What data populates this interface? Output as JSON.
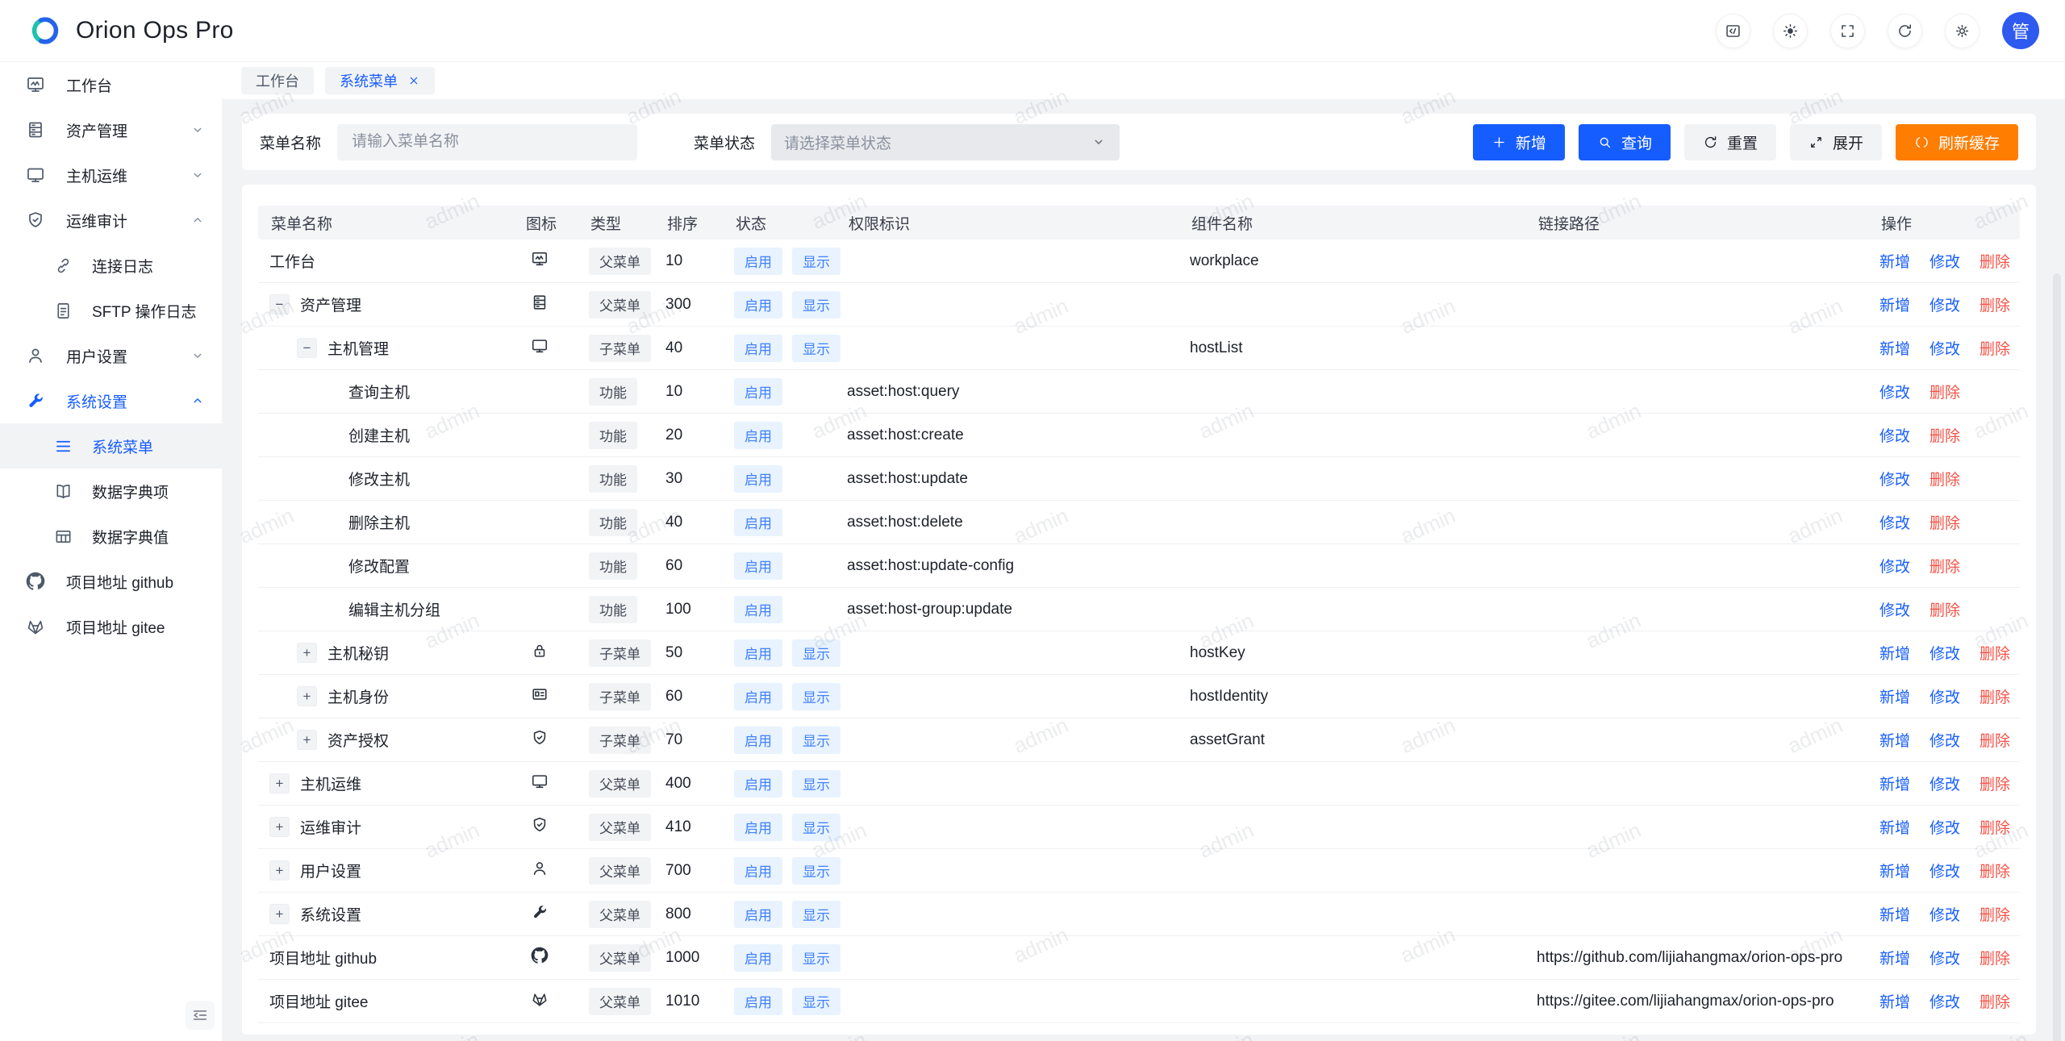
{
  "app": {
    "name": "Orion Ops Pro"
  },
  "header": {
    "avatar": "管",
    "actions": [
      {
        "icon": "code",
        "name": "api-docs"
      },
      {
        "icon": "sun",
        "name": "theme-toggle"
      },
      {
        "icon": "fullscreen",
        "name": "fullscreen"
      },
      {
        "icon": "refresh",
        "name": "reload"
      },
      {
        "icon": "gear",
        "name": "settings"
      }
    ]
  },
  "sidebar": {
    "items": [
      {
        "label": "工作台",
        "icon": "dashboard"
      },
      {
        "label": "资产管理",
        "icon": "server",
        "chevron": "down"
      },
      {
        "label": "主机运维",
        "icon": "monitor",
        "chevron": "down"
      },
      {
        "label": "运维审计",
        "icon": "shield",
        "chevron": "up",
        "children": [
          {
            "label": "连接日志",
            "icon": "link"
          },
          {
            "label": "SFTP 操作日志",
            "icon": "file"
          }
        ]
      },
      {
        "label": "用户设置",
        "icon": "user",
        "chevron": "down"
      },
      {
        "label": "系统设置",
        "icon": "wrench",
        "chevron": "up",
        "active": true,
        "children": [
          {
            "label": "系统菜单",
            "icon": "menu",
            "selected": true
          },
          {
            "label": "数据字典项",
            "icon": "book"
          },
          {
            "label": "数据字典值",
            "icon": "table"
          }
        ]
      },
      {
        "label": "项目地址 github",
        "icon": "github"
      },
      {
        "label": "项目地址 gitee",
        "icon": "gitee"
      }
    ]
  },
  "tabs": [
    {
      "label": "工作台"
    },
    {
      "label": "系统菜单",
      "active": true,
      "closable": true
    }
  ],
  "filter": {
    "name_label": "菜单名称",
    "name_placeholder": "请输入菜单名称",
    "status_label": "菜单状态",
    "status_placeholder": "请选择菜单状态"
  },
  "toolbar": {
    "buttons": [
      {
        "label": "新增",
        "icon": "plus",
        "style": "primary"
      },
      {
        "label": "查询",
        "icon": "search",
        "style": "primary"
      },
      {
        "label": "重置",
        "icon": "refresh",
        "style": "secondary"
      },
      {
        "label": "展开",
        "icon": "expand",
        "style": "secondary"
      },
      {
        "label": "刷新缓存",
        "icon": "loading",
        "style": "warning"
      }
    ]
  },
  "table": {
    "columns": [
      "菜单名称",
      "图标",
      "类型",
      "排序",
      "状态",
      "权限标识",
      "组件名称",
      "链接路径",
      "操作"
    ],
    "rows": [
      {
        "name": "工作台",
        "level": 0,
        "icon": "dashboard",
        "type": "父菜单",
        "sort": "10",
        "status": [
          "启用",
          "显示"
        ],
        "perm": "",
        "component": "workplace",
        "path": "",
        "actions": [
          "新增",
          "修改",
          "删除"
        ]
      },
      {
        "name": "资产管理",
        "level": 0,
        "expander": "minus",
        "icon": "server",
        "type": "父菜单",
        "sort": "300",
        "status": [
          "启用",
          "显示"
        ],
        "perm": "",
        "component": "",
        "path": "",
        "actions": [
          "新增",
          "修改",
          "删除"
        ]
      },
      {
        "name": "主机管理",
        "level": 1,
        "expander": "minus",
        "icon": "monitor",
        "type": "子菜单",
        "sort": "40",
        "status": [
          "启用",
          "显示"
        ],
        "perm": "",
        "component": "hostList",
        "path": "",
        "actions": [
          "新增",
          "修改",
          "删除"
        ]
      },
      {
        "name": "查询主机",
        "level": 2,
        "type": "功能",
        "sort": "10",
        "status": [
          "启用"
        ],
        "perm": "asset:host:query",
        "component": "",
        "path": "",
        "actions": [
          "修改",
          "删除"
        ]
      },
      {
        "name": "创建主机",
        "level": 2,
        "type": "功能",
        "sort": "20",
        "status": [
          "启用"
        ],
        "perm": "asset:host:create",
        "component": "",
        "path": "",
        "actions": [
          "修改",
          "删除"
        ]
      },
      {
        "name": "修改主机",
        "level": 2,
        "type": "功能",
        "sort": "30",
        "status": [
          "启用"
        ],
        "perm": "asset:host:update",
        "component": "",
        "path": "",
        "actions": [
          "修改",
          "删除"
        ]
      },
      {
        "name": "删除主机",
        "level": 2,
        "type": "功能",
        "sort": "40",
        "status": [
          "启用"
        ],
        "perm": "asset:host:delete",
        "component": "",
        "path": "",
        "actions": [
          "修改",
          "删除"
        ]
      },
      {
        "name": "修改配置",
        "level": 2,
        "type": "功能",
        "sort": "60",
        "status": [
          "启用"
        ],
        "perm": "asset:host:update-config",
        "component": "",
        "path": "",
        "actions": [
          "修改",
          "删除"
        ]
      },
      {
        "name": "编辑主机分组",
        "level": 2,
        "type": "功能",
        "sort": "100",
        "status": [
          "启用"
        ],
        "perm": "asset:host-group:update",
        "component": "",
        "path": "",
        "actions": [
          "修改",
          "删除"
        ]
      },
      {
        "name": "主机秘钥",
        "level": 1,
        "expander": "plus",
        "icon": "lock",
        "type": "子菜单",
        "sort": "50",
        "status": [
          "启用",
          "显示"
        ],
        "perm": "",
        "component": "hostKey",
        "path": "",
        "actions": [
          "新增",
          "修改",
          "删除"
        ]
      },
      {
        "name": "主机身份",
        "level": 1,
        "expander": "plus",
        "icon": "idcard",
        "type": "子菜单",
        "sort": "60",
        "status": [
          "启用",
          "显示"
        ],
        "perm": "",
        "component": "hostIdentity",
        "path": "",
        "actions": [
          "新增",
          "修改",
          "删除"
        ]
      },
      {
        "name": "资产授权",
        "level": 1,
        "expander": "plus",
        "icon": "shield",
        "type": "子菜单",
        "sort": "70",
        "status": [
          "启用",
          "显示"
        ],
        "perm": "",
        "component": "assetGrant",
        "path": "",
        "actions": [
          "新增",
          "修改",
          "删除"
        ]
      },
      {
        "name": "主机运维",
        "level": 0,
        "expander": "plus",
        "icon": "monitor",
        "type": "父菜单",
        "sort": "400",
        "status": [
          "启用",
          "显示"
        ],
        "perm": "",
        "component": "",
        "path": "",
        "actions": [
          "新增",
          "修改",
          "删除"
        ]
      },
      {
        "name": "运维审计",
        "level": 0,
        "expander": "plus",
        "icon": "shield",
        "type": "父菜单",
        "sort": "410",
        "status": [
          "启用",
          "显示"
        ],
        "perm": "",
        "component": "",
        "path": "",
        "actions": [
          "新增",
          "修改",
          "删除"
        ]
      },
      {
        "name": "用户设置",
        "level": 0,
        "expander": "plus",
        "icon": "user",
        "type": "父菜单",
        "sort": "700",
        "status": [
          "启用",
          "显示"
        ],
        "perm": "",
        "component": "",
        "path": "",
        "actions": [
          "新增",
          "修改",
          "删除"
        ]
      },
      {
        "name": "系统设置",
        "level": 0,
        "expander": "plus",
        "icon": "wrench",
        "type": "父菜单",
        "sort": "800",
        "status": [
          "启用",
          "显示"
        ],
        "perm": "",
        "component": "",
        "path": "",
        "actions": [
          "新增",
          "修改",
          "删除"
        ]
      },
      {
        "name": "项目地址 github",
        "level": 0,
        "icon": "github",
        "type": "父菜单",
        "sort": "1000",
        "status": [
          "启用",
          "显示"
        ],
        "perm": "",
        "component": "",
        "path": "https://github.com/lijiahangmax/orion-ops-pro",
        "actions": [
          "新增",
          "修改",
          "删除"
        ]
      },
      {
        "name": "项目地址 gitee",
        "level": 0,
        "icon": "gitee",
        "type": "父菜单",
        "sort": "1010",
        "status": [
          "启用",
          "显示"
        ],
        "perm": "",
        "component": "",
        "path": "https://gitee.com/lijiahangmax/orion-ops-pro",
        "actions": [
          "新增",
          "修改",
          "删除"
        ]
      }
    ]
  },
  "watermark": {
    "text": "admin"
  },
  "colors": {
    "primary": "#165dff",
    "warning": "#ff7d00",
    "danger": "#f55246",
    "tag_blue_bg": "#e8f3ff",
    "fill_gray": "#f2f3f5",
    "logo_teal": "#1fc1b0",
    "logo_blue": "#2563eb"
  }
}
